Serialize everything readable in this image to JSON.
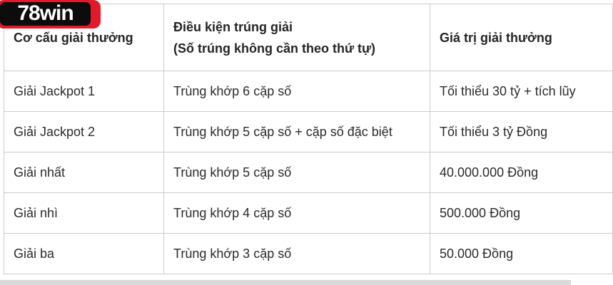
{
  "logo": {
    "text": "78win",
    "bg_color": "#0c0c0c",
    "border_color": "#e2192b",
    "text_color": "#ffffff"
  },
  "colors": {
    "table_border": "#cccccc",
    "text": "#2b2b2b",
    "page_background": "#ffffff",
    "bottom_strip": "#d9d9d9"
  },
  "table": {
    "headers": {
      "structure": {
        "line1": "Cơ cấu giải thưởng"
      },
      "condition": {
        "line1": "Điều kiện trúng giải",
        "line2": "(Số trúng không cần theo thứ tự)"
      },
      "value": {
        "line1": "Giá trị giải thưởng"
      }
    },
    "rows": [
      {
        "prize": "Giải Jackpot 1",
        "condition": "Trùng khớp 6 cặp số",
        "value": "Tối thiểu 30 tỷ + tích lũy"
      },
      {
        "prize": "Giải Jackpot 2",
        "condition": "Trùng khớp 5 cặp số + cặp số đặc biệt",
        "value": "Tối thiểu 3 tỷ Đồng"
      },
      {
        "prize": "Giải nhất",
        "condition": "Trùng khớp 5 cặp số",
        "value": "40.000.000 Đồng"
      },
      {
        "prize": "Giải nhì",
        "condition": "Trùng khớp 4 cặp số",
        "value": "500.000 Đồng"
      },
      {
        "prize": "Giải ba",
        "condition": "Trùng khớp 3 cặp số",
        "value": "50.000 Đồng"
      }
    ]
  }
}
